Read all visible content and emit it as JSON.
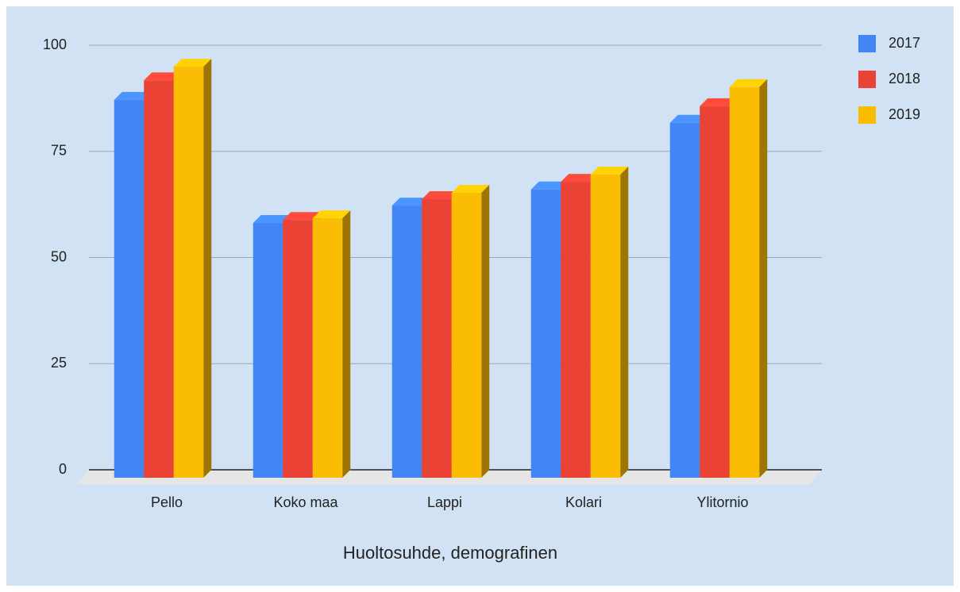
{
  "chart_data": {
    "type": "bar3d",
    "xlabel": "Huoltosuhde, demografinen",
    "categories": [
      "Pello",
      "Koko maa",
      "Lappi",
      "Kolari",
      "Ylitornio"
    ],
    "series": [
      {
        "name": "2017",
        "color": "#4285f4",
        "values": [
          89.0,
          60.0,
          64.1,
          67.9,
          83.6
        ]
      },
      {
        "name": "2018",
        "color": "#ea4335",
        "values": [
          93.6,
          60.7,
          65.6,
          69.7,
          87.5
        ]
      },
      {
        "name": "2019",
        "color": "#fbbc04",
        "values": [
          96.8,
          61.1,
          67.1,
          71.4,
          92.0
        ]
      }
    ],
    "ylim": [
      0,
      100
    ],
    "yticks": [
      0,
      25,
      50,
      75,
      100
    ],
    "grid": true,
    "legend": "right"
  }
}
